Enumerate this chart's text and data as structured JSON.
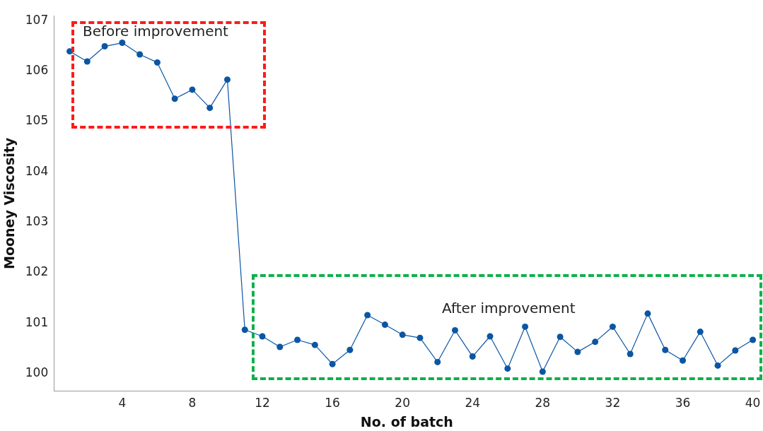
{
  "chart_data": {
    "type": "line",
    "xlabel": "No. of batch",
    "ylabel": "Mooney Viscosity",
    "x": [
      1,
      2,
      3,
      4,
      5,
      6,
      7,
      8,
      9,
      10,
      11,
      12,
      13,
      14,
      15,
      16,
      17,
      18,
      19,
      20,
      21,
      22,
      23,
      24,
      25,
      26,
      27,
      28,
      29,
      30,
      31,
      32,
      33,
      34,
      35,
      36,
      37,
      38,
      39,
      40
    ],
    "series": [
      {
        "color": "#0b56a4",
        "values": [
          106.39,
          106.19,
          106.49,
          106.56,
          106.33,
          106.17,
          105.45,
          105.63,
          105.27,
          105.83,
          100.87,
          100.74,
          100.53,
          100.67,
          100.57,
          100.19,
          100.47,
          101.16,
          100.97,
          100.77,
          100.71,
          100.23,
          100.86,
          100.34,
          100.74,
          100.1,
          100.93,
          100.04,
          100.73,
          100.43,
          100.63,
          100.93,
          100.39,
          101.19,
          100.47,
          100.26,
          100.83,
          100.16,
          100.46,
          100.67
        ]
      }
    ],
    "xlim": [
      0.1,
      40.4
    ],
    "ylim": [
      99.65,
      107.1
    ],
    "xticks": [
      4,
      8,
      12,
      16,
      20,
      24,
      28,
      32,
      36,
      40
    ],
    "yticks": [
      100,
      101,
      102,
      103,
      104,
      105,
      106,
      107
    ],
    "annotations": [
      "Before improvement",
      "After improvement"
    ],
    "marker": "circle",
    "line_style": "solid",
    "grid": false,
    "legend": false
  }
}
